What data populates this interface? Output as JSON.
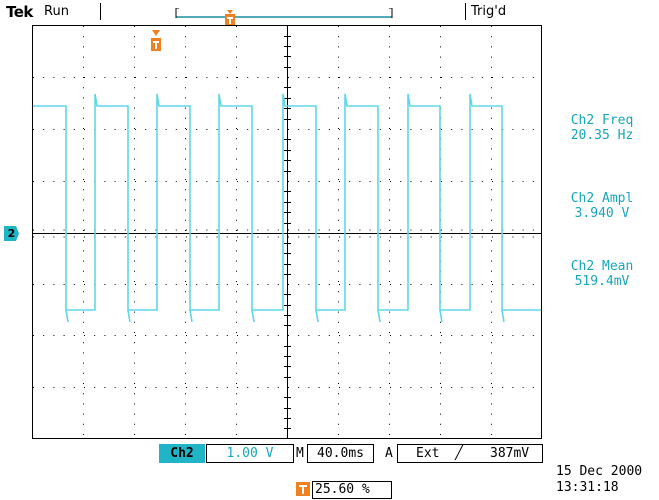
{
  "header": {
    "brand": "Tek",
    "acq_state": "Run",
    "trigger_status": "Trig'd"
  },
  "measurements": [
    {
      "name": "Ch2 Freq",
      "value": "20.35 Hz"
    },
    {
      "name": "Ch2 Ampl",
      "value": "3.940 V"
    },
    {
      "name": "Ch2 Mean",
      "value": "519.4mV"
    }
  ],
  "channel_marker": "2",
  "trigger_marker": "T",
  "status": {
    "channel": "Ch2",
    "volts_per_div": "1.00 V",
    "timebase_prefix": "M",
    "time_per_div": "40.0ms",
    "trigger_mode": "A",
    "trigger_source": "Ext",
    "trigger_slope": "╱",
    "trigger_level": "387mV",
    "trigger_position": "25.60 %"
  },
  "datetime": {
    "date": "15 Dec  2000",
    "time": "13:31:18"
  },
  "colors": {
    "trace": "#5fd8e6",
    "accent": "#f08020",
    "channel_badge": "#1fb5c6",
    "text_cyan": "#17a6b9"
  }
}
